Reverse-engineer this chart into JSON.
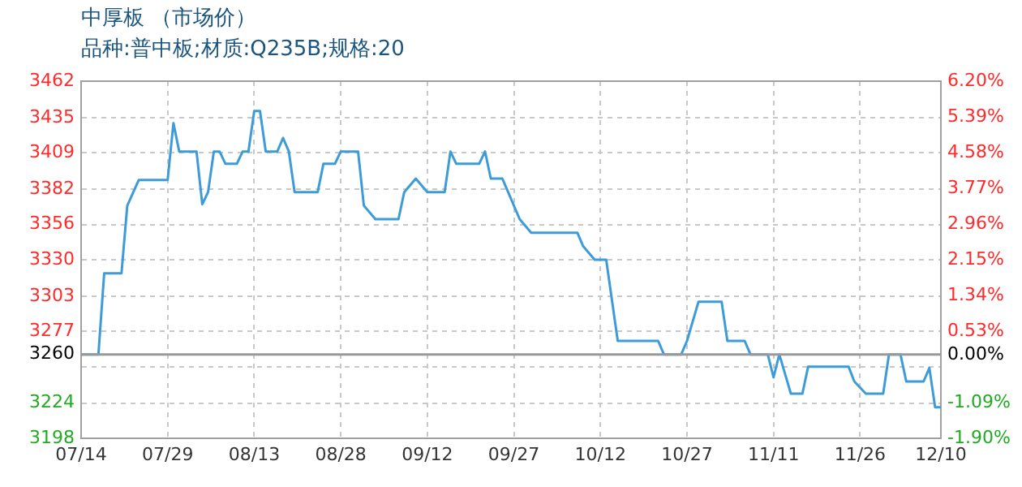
{
  "chart_data": {
    "type": "line",
    "title": "中厚板 （市场价）",
    "subtitle": "品种:普中板;材质:Q235B;规格:20",
    "x": [
      "--07-14",
      "--07-17",
      "--07-18",
      "--07-21",
      "--07-22",
      "--07-24",
      "--07-29",
      "--07-30",
      "--07-31",
      "--08-03",
      "--08-04",
      "--08-05",
      "--08-06",
      "--08-07",
      "--08-08",
      "--08-10",
      "--08-11",
      "--08-12",
      "--08-13",
      "--08-14",
      "--08-15",
      "--08-17",
      "--08-18",
      "--08-19",
      "--08-20",
      "--08-24",
      "--08-25",
      "--08-27",
      "--08-28",
      "--08-31",
      "--09-01",
      "--09-03",
      "--09-07",
      "--09-08",
      "--09-10",
      "--09-12",
      "--09-15",
      "--09-16",
      "--09-17",
      "--09-21",
      "--09-22",
      "--09-23",
      "--09-25",
      "--09-26",
      "--09-28",
      "--09-30",
      "--10-08",
      "--10-09",
      "--10-11",
      "--10-13",
      "--10-15",
      "--10-22",
      "--10-23",
      "--10-26",
      "--10-27",
      "--10-29",
      "--11-02",
      "--11-03",
      "--11-06",
      "--11-07",
      "--11-10",
      "--11-11",
      "--11-12",
      "--11-14",
      "--11-16",
      "--11-17",
      "--11-24",
      "--11-25",
      "--11-27",
      "--11-30",
      "--12-01",
      "--12-03",
      "--12-04",
      "--12-07",
      "--12-08",
      "--12-09",
      "--12-10"
    ],
    "series": [
      {
        "color": "#3d9cd8",
        "values": [
          3260,
          3260,
          3320,
          3320,
          3370,
          3389,
          3389,
          3431,
          3410,
          3410,
          3371,
          3380,
          3410,
          3410,
          3401,
          3401,
          3410,
          3410,
          3440,
          3440,
          3410,
          3410,
          3420,
          3410,
          3380,
          3380,
          3401,
          3401,
          3410,
          3410,
          3370,
          3360,
          3360,
          3380,
          3390,
          3380,
          3380,
          3410,
          3401,
          3401,
          3410,
          3390,
          3390,
          3380,
          3360,
          3350,
          3350,
          3340,
          3330,
          3330,
          3270,
          3270,
          3260,
          3260,
          3270,
          3299,
          3299,
          3270,
          3270,
          3260,
          3260,
          3243,
          3260,
          3231,
          3231,
          3251,
          3251,
          3240,
          3231,
          3231,
          3260,
          3260,
          3240,
          3240,
          3250,
          3221,
          3221
        ]
      }
    ],
    "xlim": [
      "--07-14",
      "--12-10"
    ],
    "xticks": [
      {
        "value": "--07-14",
        "label": "07/14"
      },
      {
        "value": "--07-29",
        "label": "07/29"
      },
      {
        "value": "--08-13",
        "label": "08/13"
      },
      {
        "value": "--08-28",
        "label": "08/28"
      },
      {
        "value": "--09-12",
        "label": "09/12"
      },
      {
        "value": "--09-27",
        "label": "09/27"
      },
      {
        "value": "--10-12",
        "label": "10/12"
      },
      {
        "value": "--10-27",
        "label": "10/27"
      },
      {
        "value": "--11-11",
        "label": "11/11"
      },
      {
        "value": "--11-26",
        "label": "11/26"
      },
      {
        "value": "--12-10",
        "label": "12/10"
      }
    ],
    "ylim": [
      3198,
      3462
    ],
    "yticks": [
      3198,
      3224,
      {
        "value": 3251,
        "label": null
      },
      3260,
      3277,
      3303,
      3330,
      3356,
      3382,
      3409,
      3435,
      3462
    ],
    "y2lim": [
      -1.9,
      6.2
    ],
    "y2ticks": [
      {
        "value": -1.9,
        "label": "-1.90%"
      },
      {
        "value": -1.09,
        "label": "-1.09%"
      },
      {
        "value": -0.28,
        "label": null
      },
      {
        "value": 0,
        "label": "0.00%"
      },
      {
        "value": 0.53,
        "label": "0.53%"
      },
      {
        "value": 1.34,
        "label": "1.34%"
      },
      {
        "value": 2.15,
        "label": "2.15%"
      },
      {
        "value": 2.96,
        "label": "2.96%"
      },
      {
        "value": 3.77,
        "label": "3.77%"
      },
      {
        "value": 4.58,
        "label": "4.58%"
      },
      {
        "value": 5.39,
        "label": "5.39%"
      },
      {
        "value": 6.2,
        "label": "6.20%"
      }
    ],
    "ref_lines": [
      {
        "axis": "y",
        "value": 3260,
        "color": "#999999"
      }
    ],
    "grid": true,
    "legend": false
  }
}
